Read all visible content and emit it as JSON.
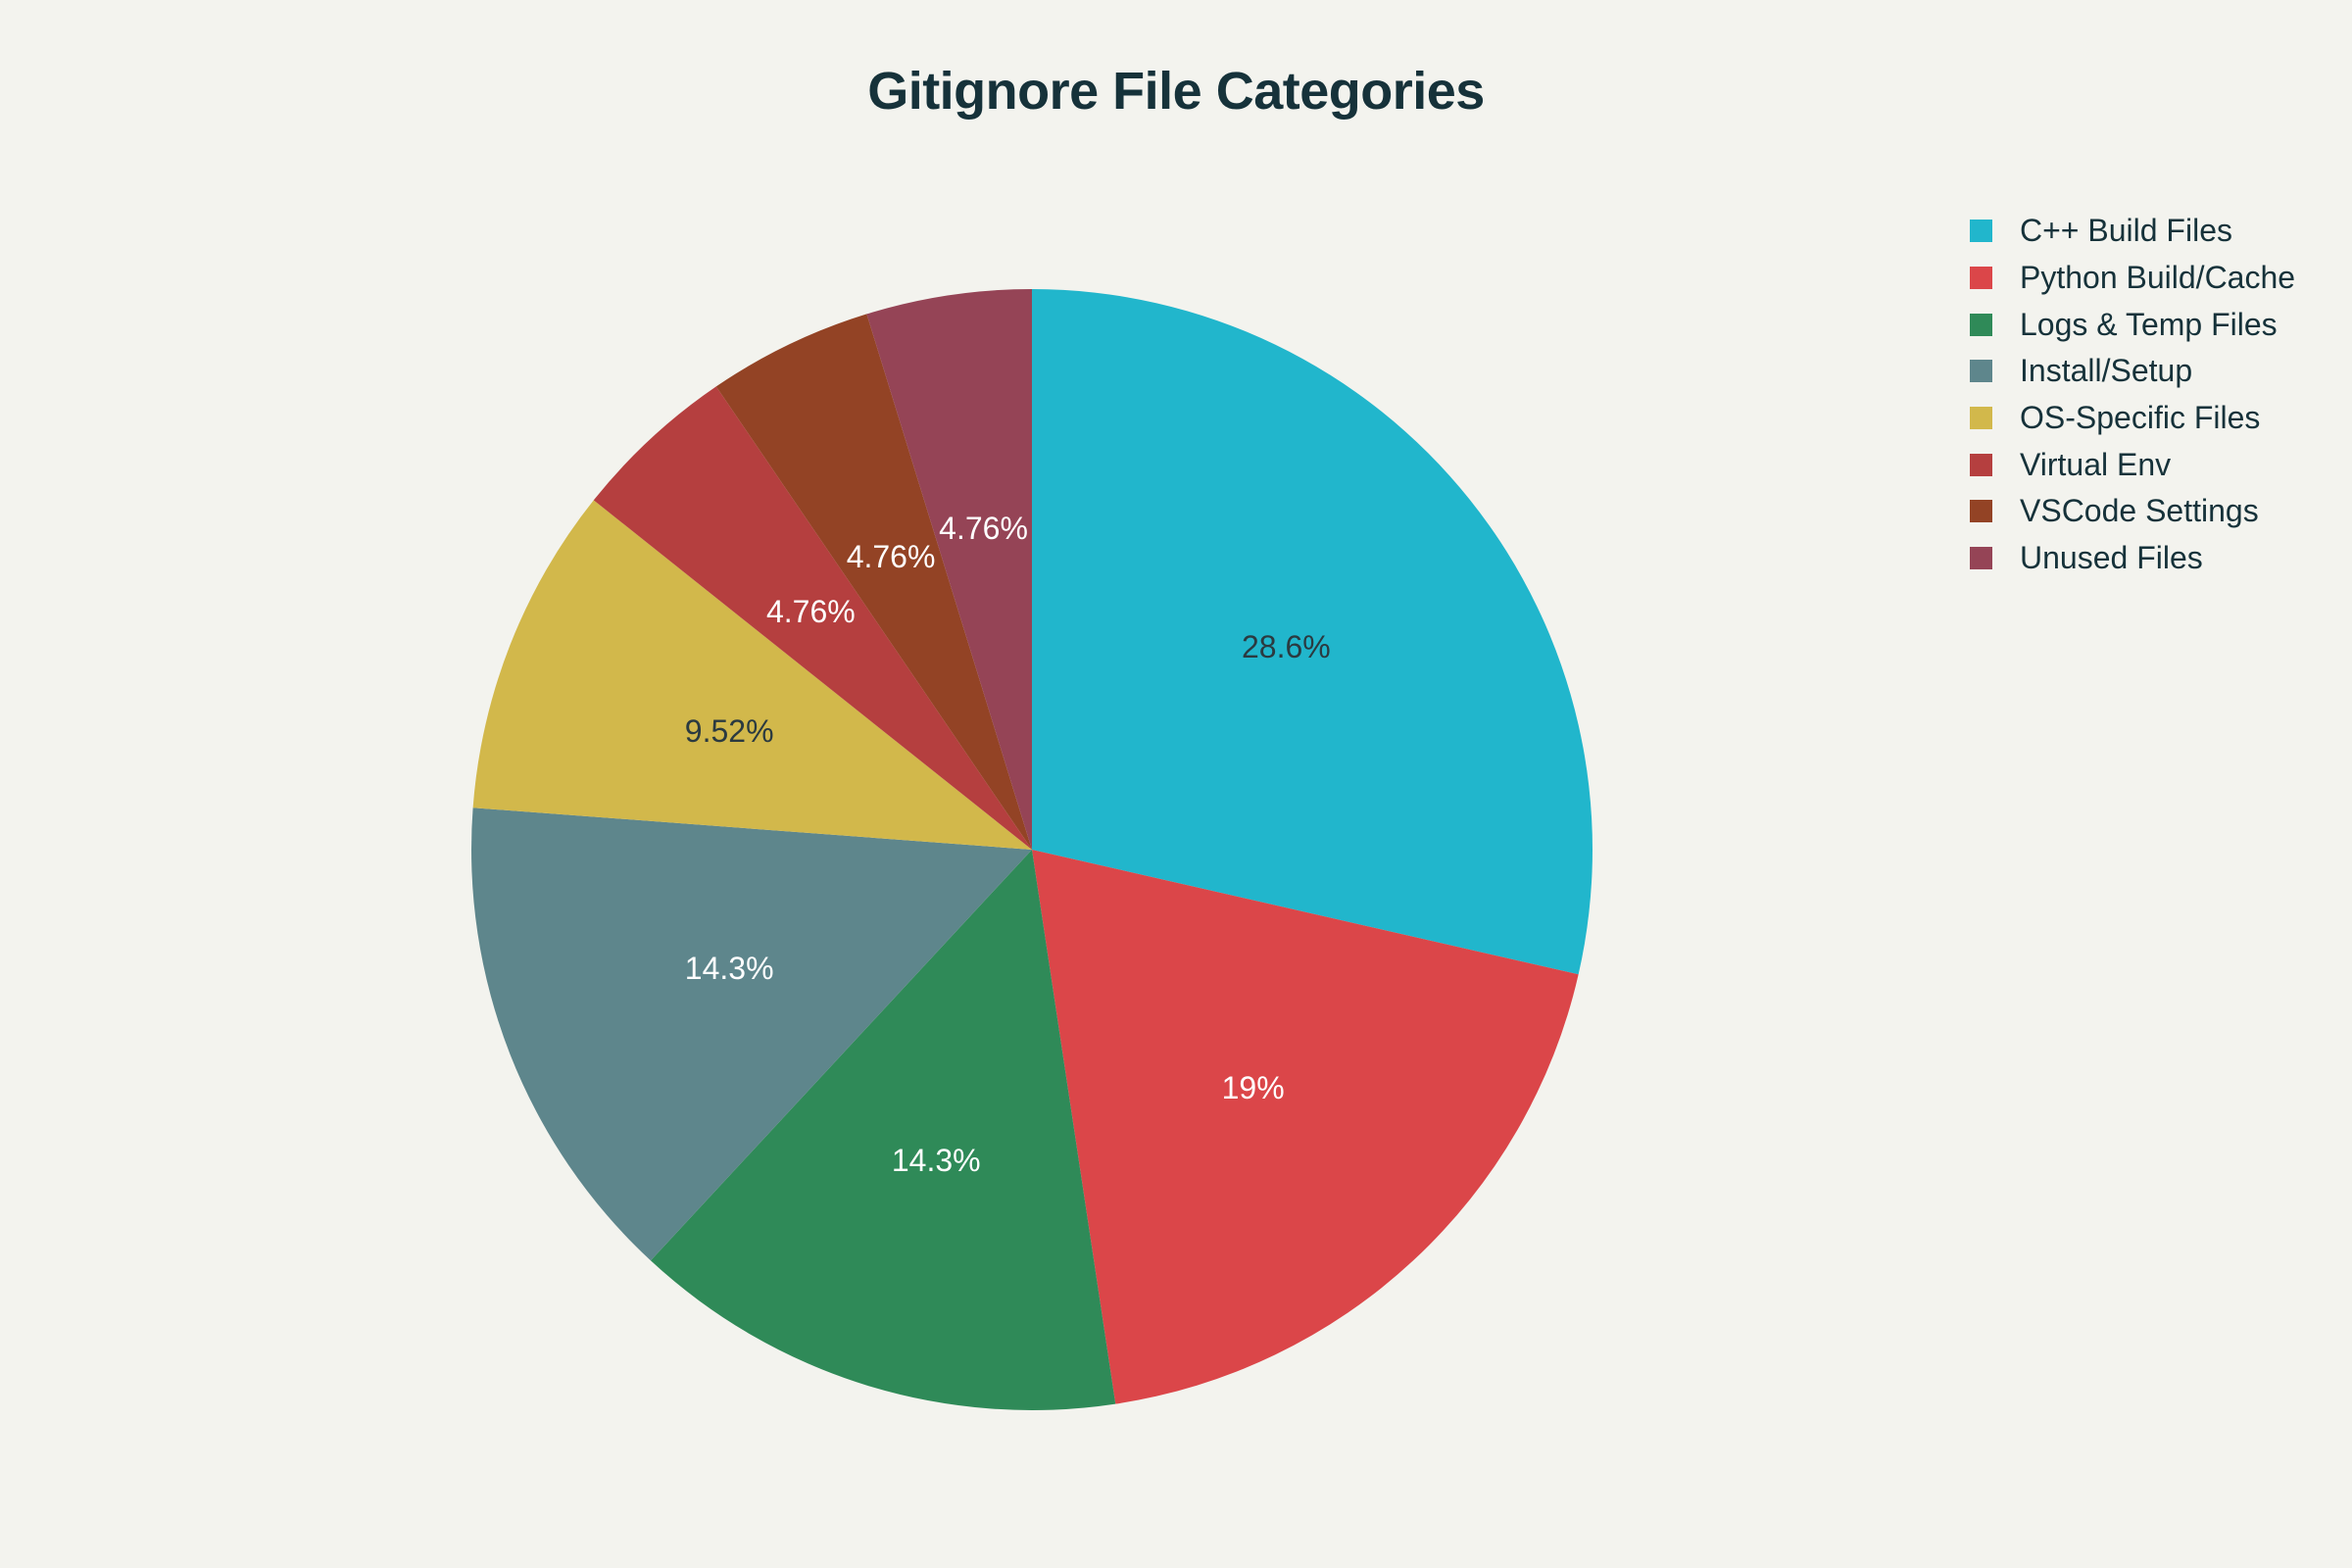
{
  "chart_data": {
    "type": "pie",
    "title": "Gitignore File Categories",
    "legend_position": "top-right",
    "start_angle_deg": 90,
    "direction": "clockwise",
    "slices": [
      {
        "label": "C++ Build Files",
        "value": 6,
        "percent_label": "28.6%",
        "color": "#21b6cc",
        "text_color": "#2b3a40"
      },
      {
        "label": "Python Build/Cache",
        "value": 4,
        "percent_label": "19%",
        "color": "#db4649",
        "text_color": "#ffffff"
      },
      {
        "label": "Logs & Temp Files",
        "value": 3,
        "percent_label": "14.3%",
        "color": "#2f8a58",
        "text_color": "#ffffff"
      },
      {
        "label": "Install/Setup",
        "value": 3,
        "percent_label": "14.3%",
        "color": "#5e868c",
        "text_color": "#ffffff"
      },
      {
        "label": "OS-Specific Files",
        "value": 2,
        "percent_label": "9.52%",
        "color": "#d2b84b",
        "text_color": "#2b3a40"
      },
      {
        "label": "Virtual Env",
        "value": 1,
        "percent_label": "4.76%",
        "color": "#b53f3f",
        "text_color": "#ffffff"
      },
      {
        "label": "VSCode Settings",
        "value": 1,
        "percent_label": "4.76%",
        "color": "#934325",
        "text_color": "#ffffff"
      },
      {
        "label": "Unused Files",
        "value": 1,
        "percent_label": "4.76%",
        "color": "#954456",
        "text_color": "#ffffff"
      }
    ]
  }
}
